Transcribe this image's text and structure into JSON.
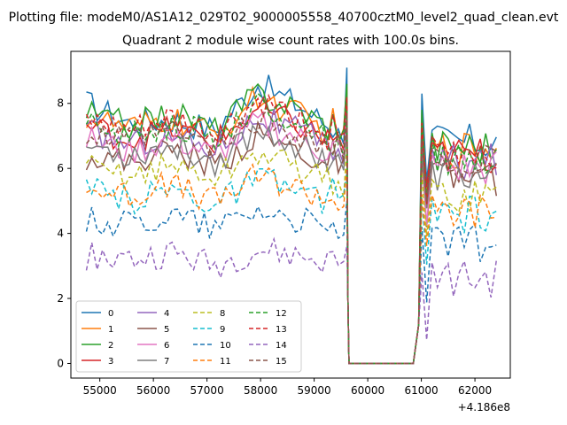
{
  "chart_data": {
    "type": "line",
    "suptitle": "Plotting file: modeM0/AS1A12_029T02_9000005558_40700cztM0_level2_quad_clean.evt",
    "title": "Quadrant 2 module wise count rates with 100.0s bins.",
    "xlabel": "",
    "ylabel": "",
    "x_offset_label": "+4.186e8",
    "xlim": [
      54460,
      62660
    ],
    "ylim": [
      -0.45,
      9.6
    ],
    "x_ticks": [
      55000,
      56000,
      57000,
      58000,
      59000,
      60000,
      61000,
      62000
    ],
    "x_tick_labels": [
      "55000",
      "56000",
      "57000",
      "58000",
      "59000",
      "60000",
      "61000",
      "62000"
    ],
    "y_ticks": [
      0,
      2,
      4,
      6,
      8
    ],
    "y_tick_labels": [
      "0",
      "2",
      "4",
      "6",
      "8"
    ],
    "grid": false,
    "legend_placement": "lower-left",
    "legend_columns": 4,
    "segments": [
      {
        "start": 54750,
        "end": 59550
      },
      {
        "start": 59650,
        "end": 60850
      },
      {
        "start": 60950,
        "end": 62450
      }
    ],
    "series": [
      {
        "name": "0",
        "color": "#1f77b4",
        "dash": "solid",
        "values": [
          8.0,
          7.4,
          7.5,
          7.2,
          8.6,
          7.9,
          7.0,
          9.1,
          7.1
        ]
      },
      {
        "name": "1",
        "color": "#ff7f0e",
        "dash": "solid",
        "values": [
          7.6,
          7.2,
          7.5,
          7.0,
          8.2,
          7.6,
          6.8,
          8.5,
          6.9
        ]
      },
      {
        "name": "2",
        "color": "#2ca02c",
        "dash": "solid",
        "values": [
          7.7,
          7.3,
          7.7,
          7.2,
          8.3,
          7.8,
          7.0,
          8.6,
          7.0
        ]
      },
      {
        "name": "3",
        "color": "#d62728",
        "dash": "solid",
        "values": [
          7.3,
          6.9,
          7.2,
          6.8,
          7.8,
          7.3,
          6.6,
          8.0,
          6.7
        ]
      },
      {
        "name": "4",
        "color": "#9467bd",
        "dash": "solid",
        "values": [
          7.1,
          6.8,
          7.0,
          6.6,
          7.6,
          7.1,
          6.4,
          7.8,
          6.5
        ]
      },
      {
        "name": "5",
        "color": "#8c564b",
        "dash": "solid",
        "values": [
          6.4,
          6.2,
          6.6,
          6.1,
          7.0,
          6.5,
          5.9,
          7.2,
          6.0
        ]
      },
      {
        "name": "6",
        "color": "#e377c2",
        "dash": "solid",
        "values": [
          6.9,
          6.5,
          6.9,
          6.4,
          7.4,
          6.9,
          6.2,
          7.6,
          6.3
        ]
      },
      {
        "name": "7",
        "color": "#7f7f7f",
        "dash": "solid",
        "values": [
          6.7,
          6.4,
          6.7,
          6.2,
          7.2,
          6.7,
          6.0,
          7.4,
          6.1
        ]
      },
      {
        "name": "8",
        "color": "#bcbd22",
        "dash": "dashed",
        "values": [
          6.0,
          5.8,
          6.1,
          5.7,
          6.5,
          6.0,
          5.4,
          6.7,
          5.5
        ]
      },
      {
        "name": "9",
        "color": "#17becf",
        "dash": "dashed",
        "values": [
          5.3,
          5.0,
          5.4,
          4.9,
          5.7,
          5.3,
          4.8,
          5.9,
          4.9
        ]
      },
      {
        "name": "10",
        "color": "#1f77b4",
        "dash": "dashed",
        "values": [
          4.4,
          4.3,
          4.6,
          4.2,
          4.8,
          4.4,
          3.8,
          5.0,
          4.0
        ]
      },
      {
        "name": "11",
        "color": "#ff7f0e",
        "dash": "dashed",
        "values": [
          5.4,
          5.2,
          5.5,
          5.0,
          5.8,
          5.4,
          4.9,
          6.0,
          5.0
        ]
      },
      {
        "name": "12",
        "color": "#2ca02c",
        "dash": "dashed",
        "values": [
          7.3,
          7.0,
          7.4,
          6.9,
          7.9,
          7.4,
          6.6,
          8.1,
          6.7
        ]
      },
      {
        "name": "13",
        "color": "#d62728",
        "dash": "dashed",
        "values": [
          7.4,
          7.1,
          7.5,
          7.0,
          8.0,
          7.5,
          6.7,
          8.2,
          6.8
        ]
      },
      {
        "name": "14",
        "color": "#9467bd",
        "dash": "dashed",
        "values": [
          3.3,
          3.2,
          3.4,
          3.0,
          3.5,
          3.3,
          3.0,
          3.6,
          2.9
        ]
      },
      {
        "name": "15",
        "color": "#8c564b",
        "dash": "dashed",
        "values": [
          7.0,
          6.8,
          7.1,
          6.6,
          7.5,
          7.0,
          6.3,
          7.7,
          6.4
        ]
      }
    ]
  }
}
